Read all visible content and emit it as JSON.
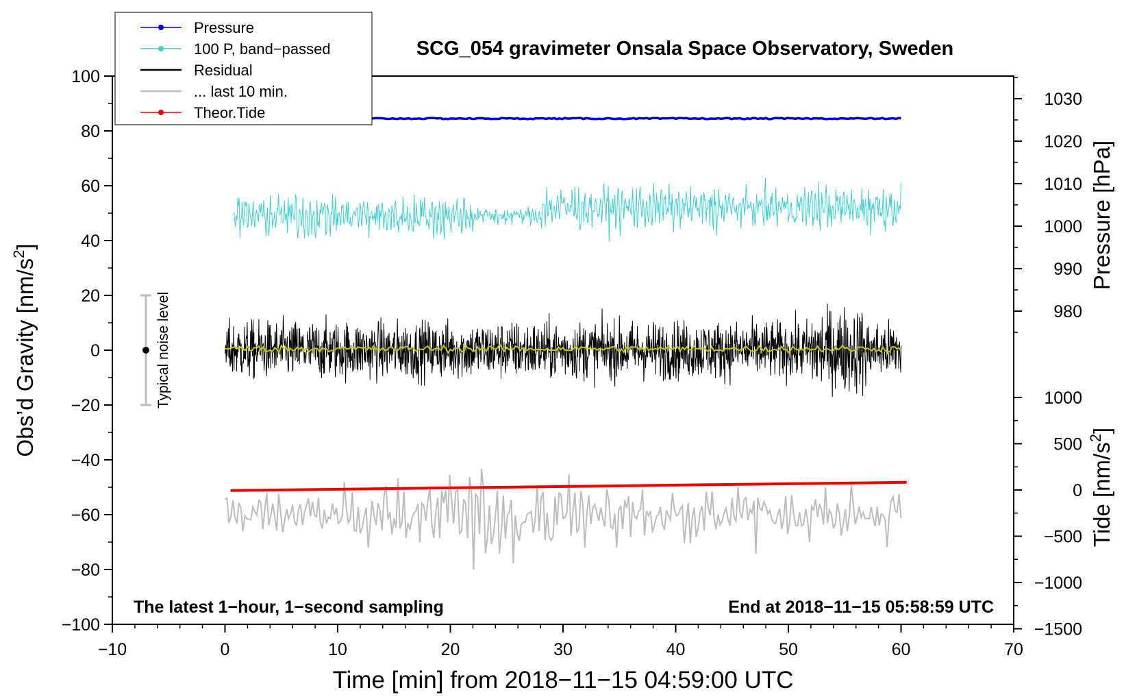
{
  "chart_data": {
    "type": "line",
    "title": "SCG_054 gravimeter Onsala Space Observatory, Sweden",
    "xlabel": "Time [min] from 2018−11−15 04:59:00 UTC",
    "ylabel_left": "Obs’d Gravity [nm/s",
    "ylabel_left_sup": "2",
    "ylabel_left_end": "]",
    "ylabel_right_pressure": "Pressure [hPa]",
    "ylabel_right_tide": "Tide [nm/s",
    "ylabel_right_tide_sup": "2",
    "ylabel_right_tide_end": "]",
    "xlim": [
      -10,
      70
    ],
    "ylim_left": [
      -100,
      100
    ],
    "x_ticks": [
      "−10",
      "0",
      "10",
      "20",
      "30",
      "40",
      "50",
      "60",
      "70"
    ],
    "y_ticks_left": [
      "−100",
      "−80",
      "−60",
      "−40",
      "−20",
      "0",
      "20",
      "40",
      "60",
      "80",
      "100"
    ],
    "pressure_axis": {
      "ticks": [
        "980",
        "990",
        "1000",
        "1010",
        "1020",
        "1030"
      ],
      "range": [
        970,
        1035
      ]
    },
    "tide_axis": {
      "ticks": [
        "−1500",
        "−1000",
        "−500",
        "0",
        "500",
        "1000"
      ],
      "range": [
        -1500,
        1000
      ]
    },
    "annotation_left": "The latest 1−hour, 1−second sampling",
    "annotation_right": "End at 2018−11−15 05:58:59 UTC",
    "noise_bar_label": "Typical noise level",
    "noise_bar_range": [
      -20,
      20
    ],
    "legend": [
      {
        "label": "Pressure",
        "color": "#0000ee",
        "marker": true
      },
      {
        "label": "100 P, band−passed",
        "color": "#3fcfcf",
        "marker": true
      },
      {
        "label": "Residual",
        "color": "#000000",
        "marker": false
      },
      {
        "label": "... last 10 min.",
        "color": "#bdbdbd",
        "marker": false
      },
      {
        "label": "Theor.Tide",
        "color": "#ee0000",
        "marker": true
      }
    ],
    "series": [
      {
        "name": "Pressure",
        "color": "#0000ee",
        "x_range": [
          13,
          60
        ],
        "level": 84.5
      },
      {
        "name": "100 P, band−passed",
        "color": "#3fcfcf",
        "x_range": [
          0.8,
          60
        ],
        "center": 50,
        "amplitude": 8
      },
      {
        "name": "Residual",
        "color": "#000000",
        "x_range": [
          0,
          60
        ],
        "center": 0,
        "amplitude": 12
      },
      {
        "name": "Residual smoothed",
        "color": "#c8c800",
        "x_range": [
          0,
          60
        ],
        "center": 0.5
      },
      {
        "name": "... last 10 min.",
        "color": "#bdbdbd",
        "x_range": [
          0,
          60
        ],
        "center": -60,
        "amplitude": 18
      },
      {
        "name": "Theor.Tide",
        "color": "#ee0000",
        "x": [
          0.5,
          60.5
        ],
        "y": [
          -51.2,
          -48.2
        ]
      }
    ]
  }
}
